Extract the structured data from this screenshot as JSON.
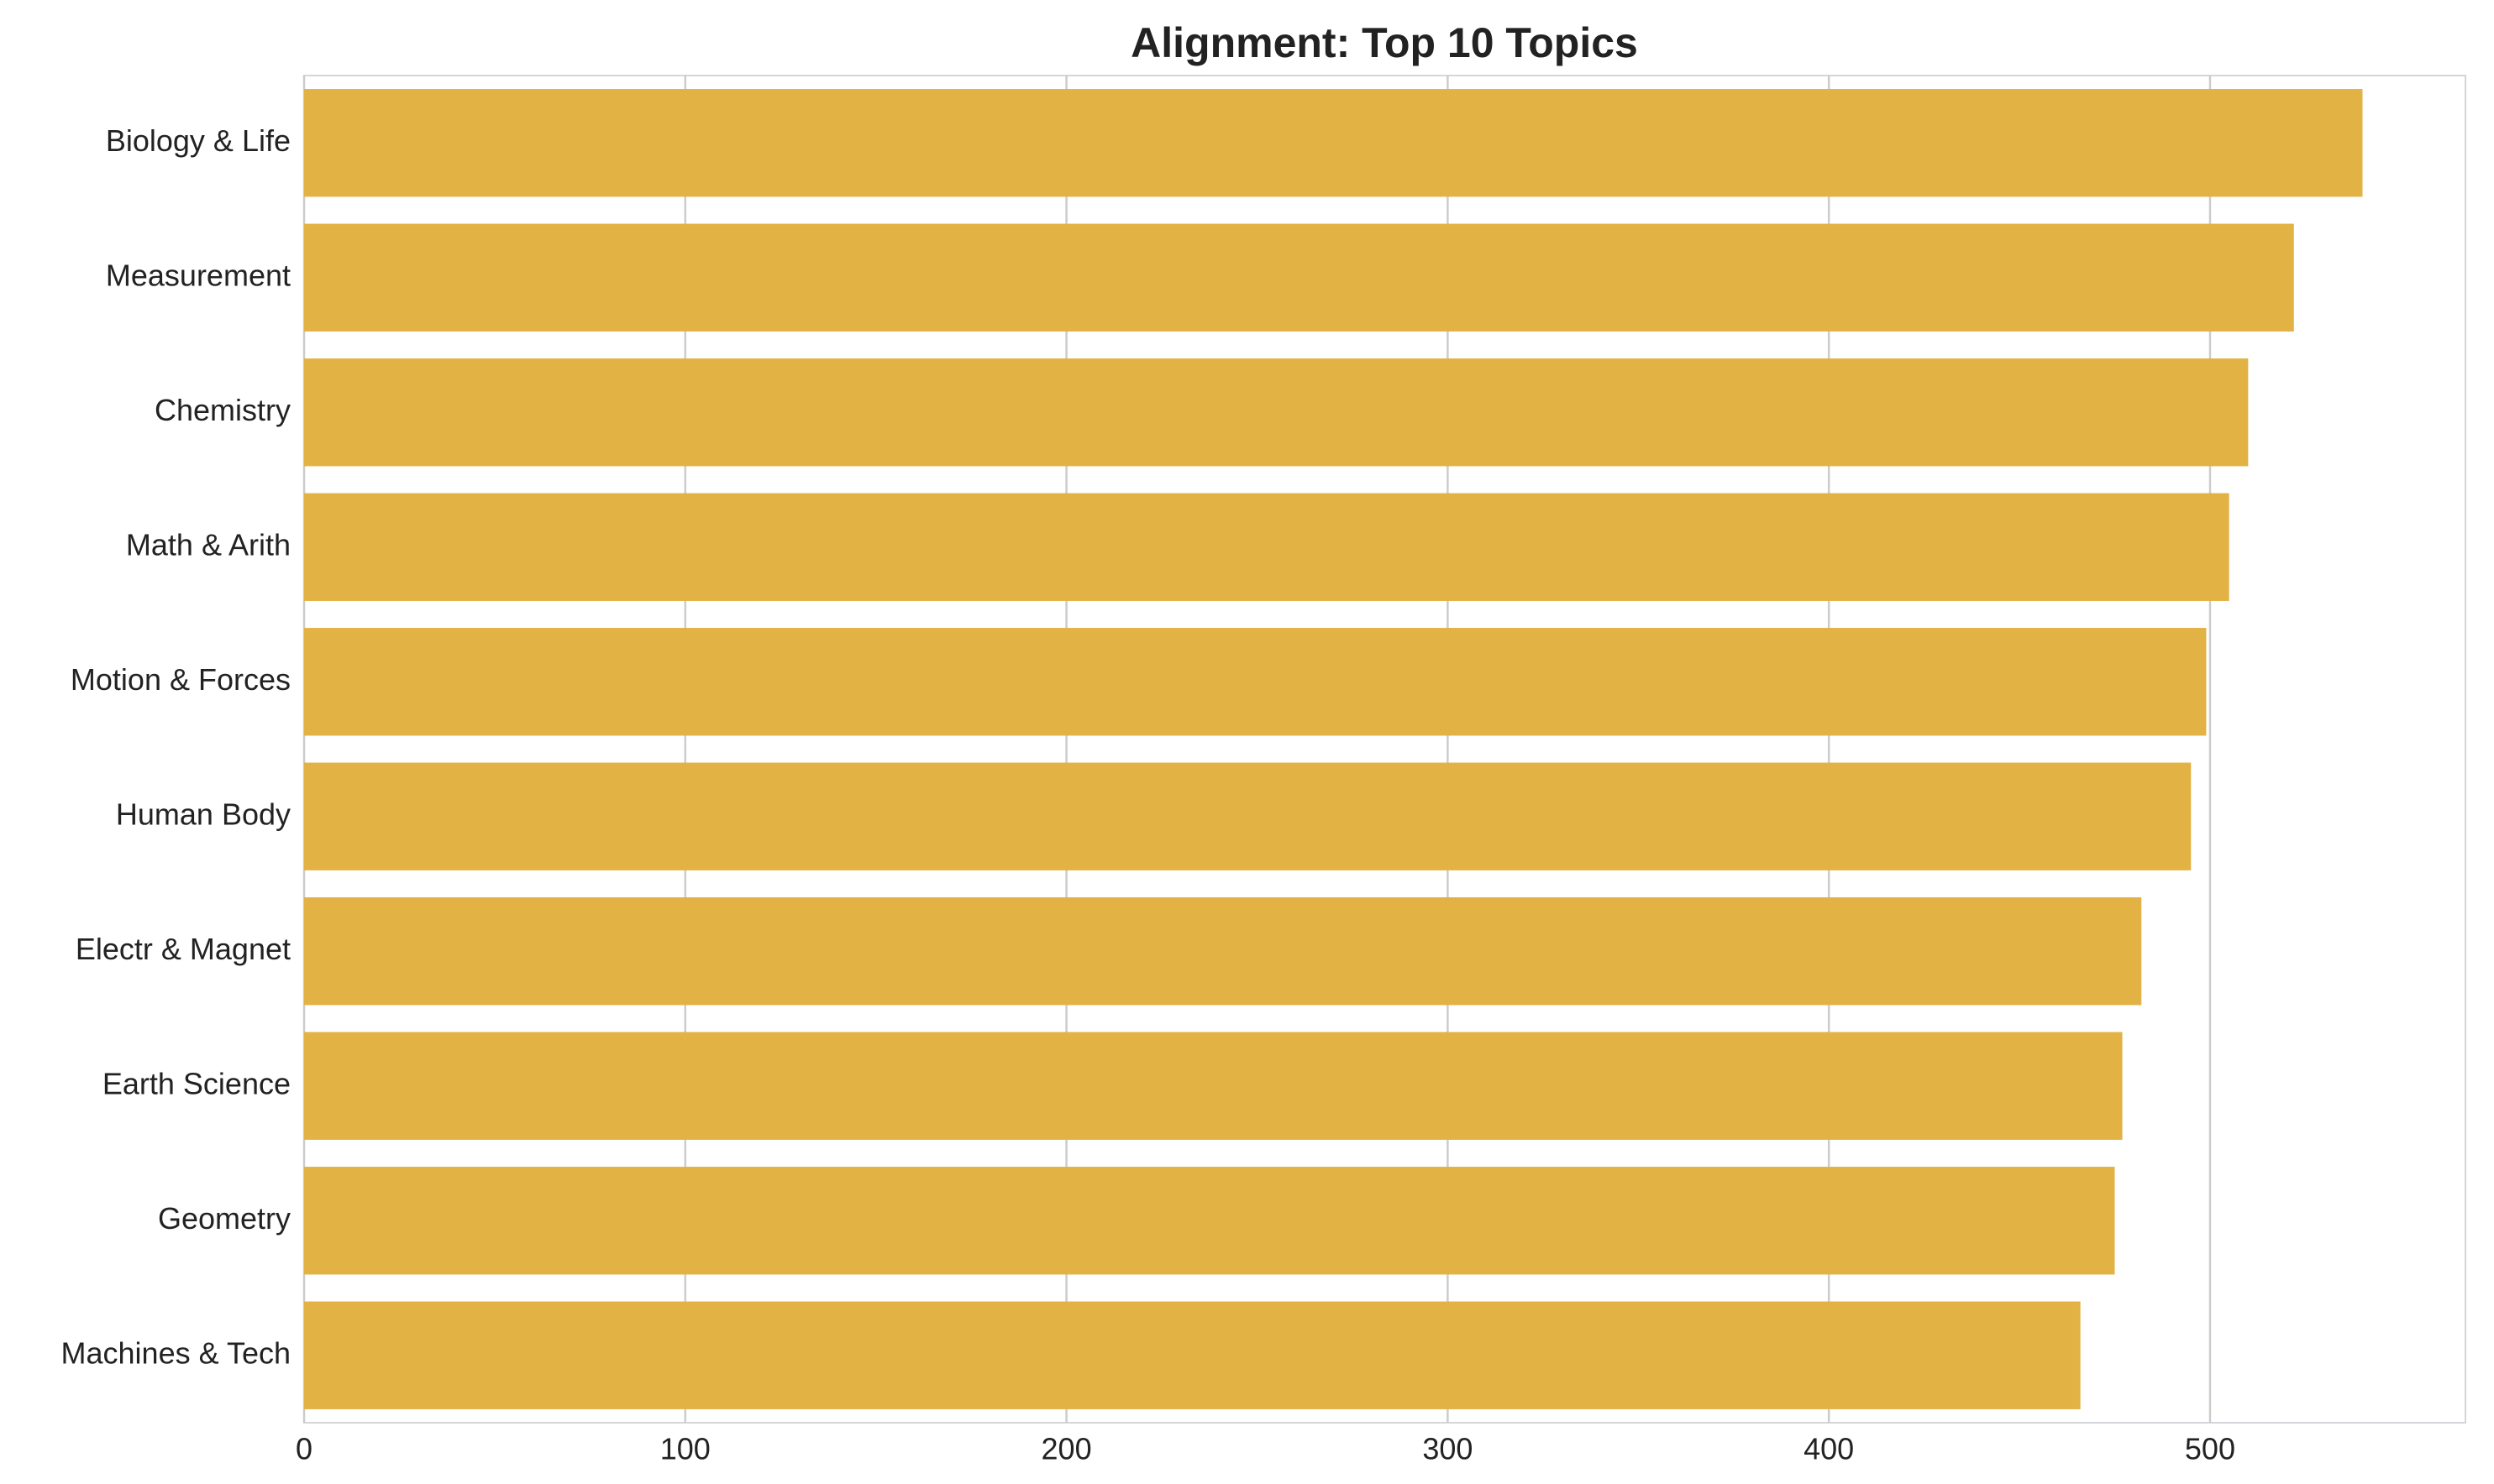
{
  "chart_data": {
    "type": "bar",
    "orientation": "horizontal",
    "title": "Alignment: Top 10 Topics",
    "categories": [
      "Biology & Life",
      "Measurement",
      "Chemistry",
      "Math & Arith",
      "Motion & Forces",
      "Human Body",
      "Electr & Magnet",
      "Earth Science",
      "Geometry",
      "Machines & Tech"
    ],
    "values": [
      540,
      522,
      510,
      505,
      499,
      495,
      482,
      477,
      475,
      466
    ],
    "color": "#e2b245",
    "xlim": [
      0,
      567
    ],
    "xticks": [
      0,
      100,
      200,
      300,
      400,
      500
    ],
    "grid": true
  }
}
